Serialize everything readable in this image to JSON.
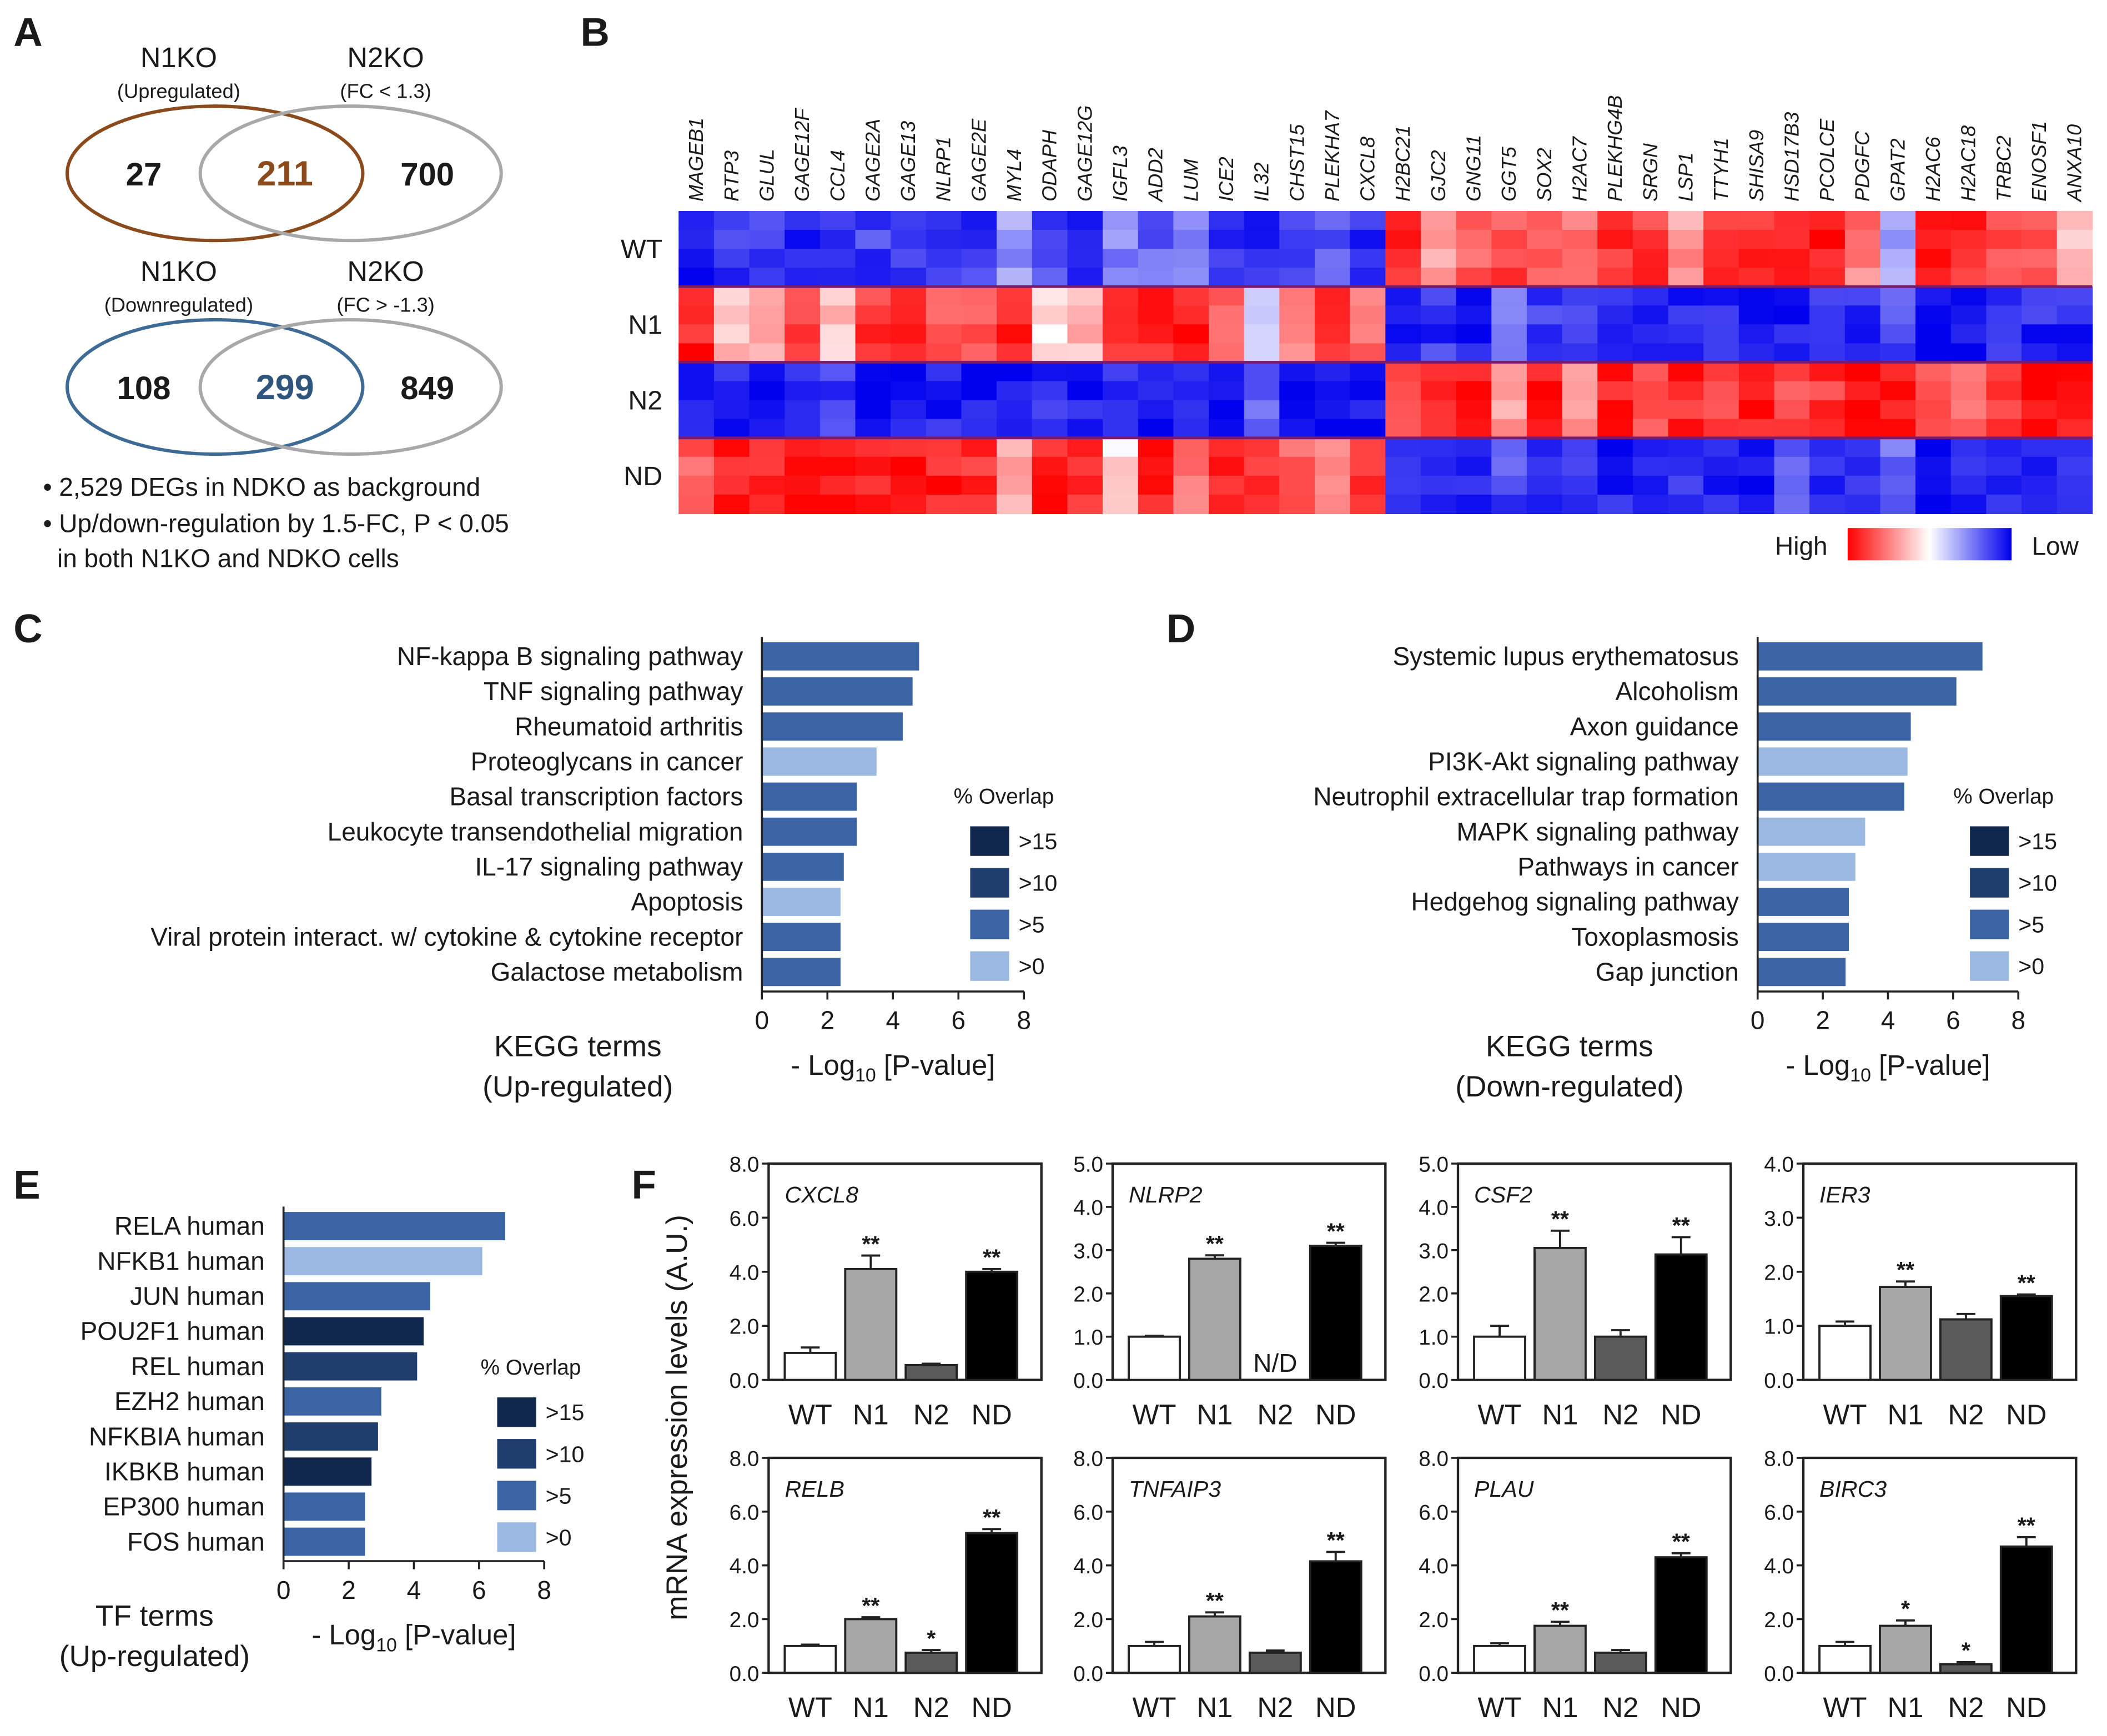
{
  "panel_labels": [
    "A",
    "B",
    "C",
    "D",
    "E",
    "F"
  ],
  "colors": {
    "venn_up": "#8b4a1c",
    "venn_down": "#3d6b96",
    "venn_n2": "#a8a8a8",
    "overlap_15": "#10284b",
    "overlap_10": "#1f3e6e",
    "overlap_5": "#3a64a4",
    "overlap_0": "#9ab8e0",
    "heat_high": "#ff0000",
    "heat_mid": "#ffffff",
    "heat_low": "#0000ee",
    "bar_WT": "#ffffff",
    "bar_N1": "#a6a6a6",
    "bar_N2": "#5a5a5a",
    "bar_ND": "#000000"
  },
  "venn": {
    "up": {
      "left_title": "N1KO",
      "left_sub": "(Upregulated)",
      "right_title": "N2KO",
      "right_sub": "(FC < 1.3)",
      "left_only": "27",
      "overlap": "211",
      "right_only": "700"
    },
    "down": {
      "left_title": "N1KO",
      "left_sub": "(Downregulated)",
      "right_title": "N2KO",
      "right_sub": "(FC > -1.3)",
      "left_only": "108",
      "overlap": "299",
      "right_only": "849"
    },
    "notes": [
      "• 2,529 DEGs in NDKO as background",
      "• Up/down-regulation by 1.5-FC, P < 0.05",
      "  in both N1KO and NDKO cells"
    ]
  },
  "chart_data": [
    {
      "panel": "B",
      "type": "heatmap",
      "genes": [
        "MAGEB1",
        "RTP3",
        "GLUL",
        "GAGE12F",
        "CCL4",
        "GAGE2A",
        "GAGE13",
        "NLRP1",
        "GAGE2E",
        "MYL4",
        "ODAPH",
        "GAGE12G",
        "IGFL3",
        "ADD2",
        "LUM",
        "ICE2",
        "IL32",
        "CHST15",
        "PLEKHA7",
        "CXCL8",
        "H2BC21",
        "GJC2",
        "GNG11",
        "GGT5",
        "SOX2",
        "H2AC7",
        "PLEKHG4B",
        "SRGN",
        "LSP1",
        "TTYH1",
        "SHISA9",
        "HSD17B3",
        "PCOLCE",
        "PDGFC",
        "GPAT2",
        "H2AC6",
        "H2AC18",
        "TRBC2",
        "ENOSF1",
        "ANXA10"
      ],
      "groups": [
        "WT",
        "N1",
        "N2",
        "ND"
      ],
      "values": {
        "WT": [
          -0.85,
          -0.8,
          -0.8,
          -0.85,
          -0.8,
          -0.75,
          -0.8,
          -0.85,
          -0.8,
          -0.4,
          -0.75,
          -0.8,
          -0.5,
          -0.6,
          -0.5,
          -0.85,
          -0.8,
          -0.75,
          -0.7,
          -0.8,
          0.9,
          0.4,
          0.6,
          0.7,
          0.7,
          0.6,
          0.8,
          0.8,
          0.4,
          0.8,
          0.8,
          0.9,
          0.9,
          0.5,
          -0.4,
          0.9,
          0.8,
          0.7,
          0.7,
          0.3
        ],
        "N1": [
          0.9,
          0.3,
          0.4,
          0.7,
          0.2,
          0.8,
          0.8,
          0.6,
          0.7,
          0.9,
          0.1,
          0.3,
          0.9,
          0.9,
          0.9,
          0.6,
          -0.3,
          0.5,
          0.9,
          0.6,
          -0.85,
          -0.8,
          -0.85,
          -0.6,
          -0.8,
          -0.7,
          -0.85,
          -0.85,
          -0.85,
          -0.8,
          -0.85,
          -0.9,
          -0.8,
          -0.85,
          -0.7,
          -0.9,
          -0.9,
          -0.85,
          -0.85,
          -0.85
        ],
        "N2": [
          -0.9,
          -0.85,
          -0.9,
          -0.9,
          -0.8,
          -0.9,
          -0.9,
          -0.9,
          -0.9,
          -0.9,
          -0.85,
          -0.9,
          -0.85,
          -0.9,
          -0.9,
          -0.9,
          -0.6,
          -0.9,
          -0.9,
          -0.9,
          0.8,
          0.85,
          0.9,
          0.4,
          0.9,
          0.5,
          0.85,
          0.7,
          0.85,
          0.8,
          0.9,
          0.75,
          0.8,
          0.9,
          0.9,
          0.7,
          0.6,
          0.8,
          0.9,
          0.9
        ],
        "ND": [
          0.6,
          0.9,
          0.9,
          0.9,
          0.9,
          0.9,
          0.9,
          0.9,
          0.85,
          0.4,
          0.9,
          0.85,
          0.1,
          0.85,
          0.6,
          0.9,
          0.85,
          0.6,
          0.5,
          0.85,
          -0.85,
          -0.85,
          -0.9,
          -0.7,
          -0.9,
          -0.8,
          -0.9,
          -0.9,
          -0.85,
          -0.9,
          -0.9,
          -0.7,
          -0.9,
          -0.85,
          -0.6,
          -0.9,
          -0.9,
          -0.85,
          -0.85,
          -0.85
        ]
      },
      "legend": {
        "high": "High",
        "low": "Low"
      }
    },
    {
      "panel": "C",
      "type": "bar",
      "orientation": "horizontal",
      "categories": [
        "NF-kappa B signaling pathway",
        "TNF signaling pathway",
        "Rheumatoid arthritis",
        "Proteoglycans in cancer",
        "Basal transcription factors",
        "Leukocyte transendothelial migration",
        "IL-17 signaling pathway",
        "Apoptosis",
        "Viral protein interact. w/ cytokine & cytokine receptor",
        "Galactose metabolism"
      ],
      "values": [
        4.8,
        4.6,
        4.3,
        3.5,
        2.9,
        2.9,
        2.5,
        2.4,
        2.4,
        2.4
      ],
      "overlap_class": [
        ">5",
        ">5",
        ">5",
        ">0",
        ">5",
        ">5",
        ">5",
        ">0",
        ">5",
        ">5"
      ],
      "xlim": [
        0,
        8
      ],
      "xticks": [
        "0",
        "2",
        "4",
        "6",
        "8"
      ],
      "xlabel_pre": "- Log",
      "xlabel_sub": "10",
      "xlabel_post": " [P-value]",
      "ylabel_lines": [
        "KEGG terms",
        "(Up-regulated)"
      ],
      "legend_title": "% Overlap",
      "legend": [
        ">15",
        ">10",
        ">5",
        ">0"
      ]
    },
    {
      "panel": "D",
      "type": "bar",
      "orientation": "horizontal",
      "categories": [
        "Systemic lupus erythematosus",
        "Alcoholism",
        "Axon guidance",
        "PI3K-Akt signaling pathway",
        "Neutrophil extracellular trap formation",
        "MAPK signaling pathway",
        "Pathways in cancer",
        "Hedgehog signaling pathway",
        "Toxoplasmosis",
        "Gap junction"
      ],
      "values": [
        6.9,
        6.1,
        4.7,
        4.6,
        4.5,
        3.3,
        3.0,
        2.8,
        2.8,
        2.7
      ],
      "overlap_class": [
        ">5",
        ">5",
        ">5",
        ">0",
        ">5",
        ">0",
        ">0",
        ">5",
        ">5",
        ">5"
      ],
      "xlim": [
        0,
        8
      ],
      "xticks": [
        "0",
        "2",
        "4",
        "6",
        "8"
      ],
      "xlabel_pre": "- Log",
      "xlabel_sub": "10",
      "xlabel_post": " [P-value]",
      "ylabel_lines": [
        "KEGG terms",
        "(Down-regulated)"
      ],
      "legend_title": "% Overlap",
      "legend": [
        ">15",
        ">10",
        ">5",
        ">0"
      ]
    },
    {
      "panel": "E",
      "type": "bar",
      "orientation": "horizontal",
      "categories": [
        "RELA human",
        "NFKB1 human",
        "JUN human",
        "POU2F1 human",
        "REL human",
        "EZH2 human",
        "NFKBIA human",
        "IKBKB human",
        "EP300 human",
        "FOS human"
      ],
      "values": [
        6.8,
        6.1,
        4.5,
        4.3,
        4.1,
        3.0,
        2.9,
        2.7,
        2.5,
        2.5
      ],
      "overlap_class": [
        ">5",
        ">0",
        ">5",
        ">15",
        ">10",
        ">5",
        ">10",
        ">15",
        ">5",
        ">5"
      ],
      "xlim": [
        0,
        8
      ],
      "xticks": [
        "0",
        "2",
        "4",
        "6",
        "8"
      ],
      "xlabel_pre": "- Log",
      "xlabel_sub": "10",
      "xlabel_post": " [P-value]",
      "ylabel_lines": [
        "TF terms",
        "(Up-regulated)"
      ],
      "legend_title": "% Overlap",
      "legend": [
        ">15",
        ">10",
        ">5",
        ">0"
      ]
    },
    {
      "panel": "F",
      "type": "bar",
      "ylabel": "mRNA expression levels (A.U.)",
      "categories": [
        "WT",
        "N1",
        "N2",
        "ND"
      ],
      "plots": [
        {
          "gene": "CXCL8",
          "ylim": [
            0,
            8
          ],
          "yticks": [
            "0.0",
            "2.0",
            "4.0",
            "6.0",
            "8.0"
          ],
          "values": [
            1.0,
            4.1,
            0.55,
            4.0
          ],
          "errors": [
            0.2,
            0.5,
            0.05,
            0.1
          ],
          "sig": [
            "",
            "**",
            "",
            "**"
          ]
        },
        {
          "gene": "NLRP2",
          "ylim": [
            0,
            5
          ],
          "yticks": [
            "0.0",
            "1.0",
            "2.0",
            "3.0",
            "4.0",
            "5.0"
          ],
          "values": [
            1.0,
            2.8,
            null,
            3.1
          ],
          "errors": [
            0.02,
            0.08,
            0,
            0.07
          ],
          "sig": [
            "",
            "**",
            "",
            "**"
          ],
          "nd_label": "N/D"
        },
        {
          "gene": "CSF2",
          "ylim": [
            0,
            5
          ],
          "yticks": [
            "0.0",
            "1.0",
            "2.0",
            "3.0",
            "4.0",
            "5.0"
          ],
          "values": [
            1.0,
            3.05,
            1.0,
            2.9
          ],
          "errors": [
            0.25,
            0.4,
            0.15,
            0.4
          ],
          "sig": [
            "",
            "**",
            "",
            "**"
          ]
        },
        {
          "gene": "IER3",
          "ylim": [
            0,
            4
          ],
          "yticks": [
            "0.0",
            "1.0",
            "2.0",
            "3.0",
            "4.0"
          ],
          "values": [
            1.0,
            1.72,
            1.12,
            1.55
          ],
          "errors": [
            0.08,
            0.1,
            0.1,
            0.03
          ],
          "sig": [
            "",
            "**",
            "",
            "**"
          ]
        },
        {
          "gene": "RELB",
          "ylim": [
            0,
            8
          ],
          "yticks": [
            "0.0",
            "2.0",
            "4.0",
            "6.0",
            "8.0"
          ],
          "values": [
            1.0,
            2.0,
            0.75,
            5.2
          ],
          "errors": [
            0.05,
            0.07,
            0.1,
            0.15
          ],
          "sig": [
            "",
            "**",
            "*",
            "**"
          ]
        },
        {
          "gene": "TNFAIP3",
          "ylim": [
            0,
            8
          ],
          "yticks": [
            "0.0",
            "2.0",
            "4.0",
            "6.0",
            "8.0"
          ],
          "values": [
            1.0,
            2.1,
            0.75,
            4.15
          ],
          "errors": [
            0.15,
            0.15,
            0.08,
            0.35
          ],
          "sig": [
            "",
            "**",
            "",
            "**"
          ]
        },
        {
          "gene": "PLAU",
          "ylim": [
            0,
            8
          ],
          "yticks": [
            "0.0",
            "2.0",
            "4.0",
            "6.0",
            "8.0"
          ],
          "values": [
            1.0,
            1.75,
            0.75,
            4.3
          ],
          "errors": [
            0.1,
            0.15,
            0.1,
            0.15
          ],
          "sig": [
            "",
            "**",
            "",
            "**"
          ]
        },
        {
          "gene": "BIRC3",
          "ylim": [
            0,
            8
          ],
          "yticks": [
            "0.0",
            "2.0",
            "4.0",
            "6.0",
            "8.0"
          ],
          "values": [
            1.0,
            1.75,
            0.32,
            4.7
          ],
          "errors": [
            0.15,
            0.2,
            0.08,
            0.35
          ],
          "sig": [
            "",
            "*",
            "*",
            "**"
          ]
        }
      ]
    }
  ]
}
